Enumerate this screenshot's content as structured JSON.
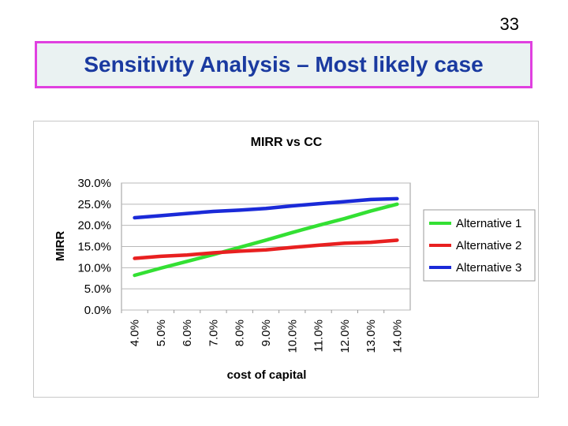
{
  "slide_number": "33",
  "slide_title": "Sensitivity Analysis – Most likely case",
  "chart_data": {
    "type": "line",
    "title": "MIRR vs CC",
    "xlabel": "cost of capital",
    "ylabel": "MIRR",
    "categories": [
      "4.0%",
      "5.0%",
      "6.0%",
      "7.0%",
      "8.0%",
      "9.0%",
      "10.0%",
      "11.0%",
      "12.0%",
      "13.0%",
      "14.0%"
    ],
    "x_values": [
      4,
      5,
      6,
      7,
      8,
      9,
      10,
      11,
      12,
      13,
      14
    ],
    "y_ticks": [
      "0.0%",
      "5.0%",
      "10.0%",
      "15.0%",
      "20.0%",
      "25.0%",
      "30.0%"
    ],
    "ylim": [
      0,
      30
    ],
    "grid": true,
    "legend_position": "right",
    "series": [
      {
        "name": "Alternative 1",
        "color": "#33e033",
        "values": [
          8.2,
          9.9,
          11.5,
          13.1,
          14.8,
          16.5,
          18.3,
          20.0,
          21.6,
          23.4,
          25.0
        ]
      },
      {
        "name": "Alternative 2",
        "color": "#e82020",
        "values": [
          12.2,
          12.7,
          13.0,
          13.5,
          13.9,
          14.2,
          14.8,
          15.3,
          15.8,
          16.0,
          16.5
        ]
      },
      {
        "name": "Alternative 3",
        "color": "#1a2ad8",
        "values": [
          21.8,
          22.3,
          22.8,
          23.3,
          23.6,
          24.0,
          24.6,
          25.1,
          25.6,
          26.1,
          26.3
        ]
      }
    ]
  }
}
